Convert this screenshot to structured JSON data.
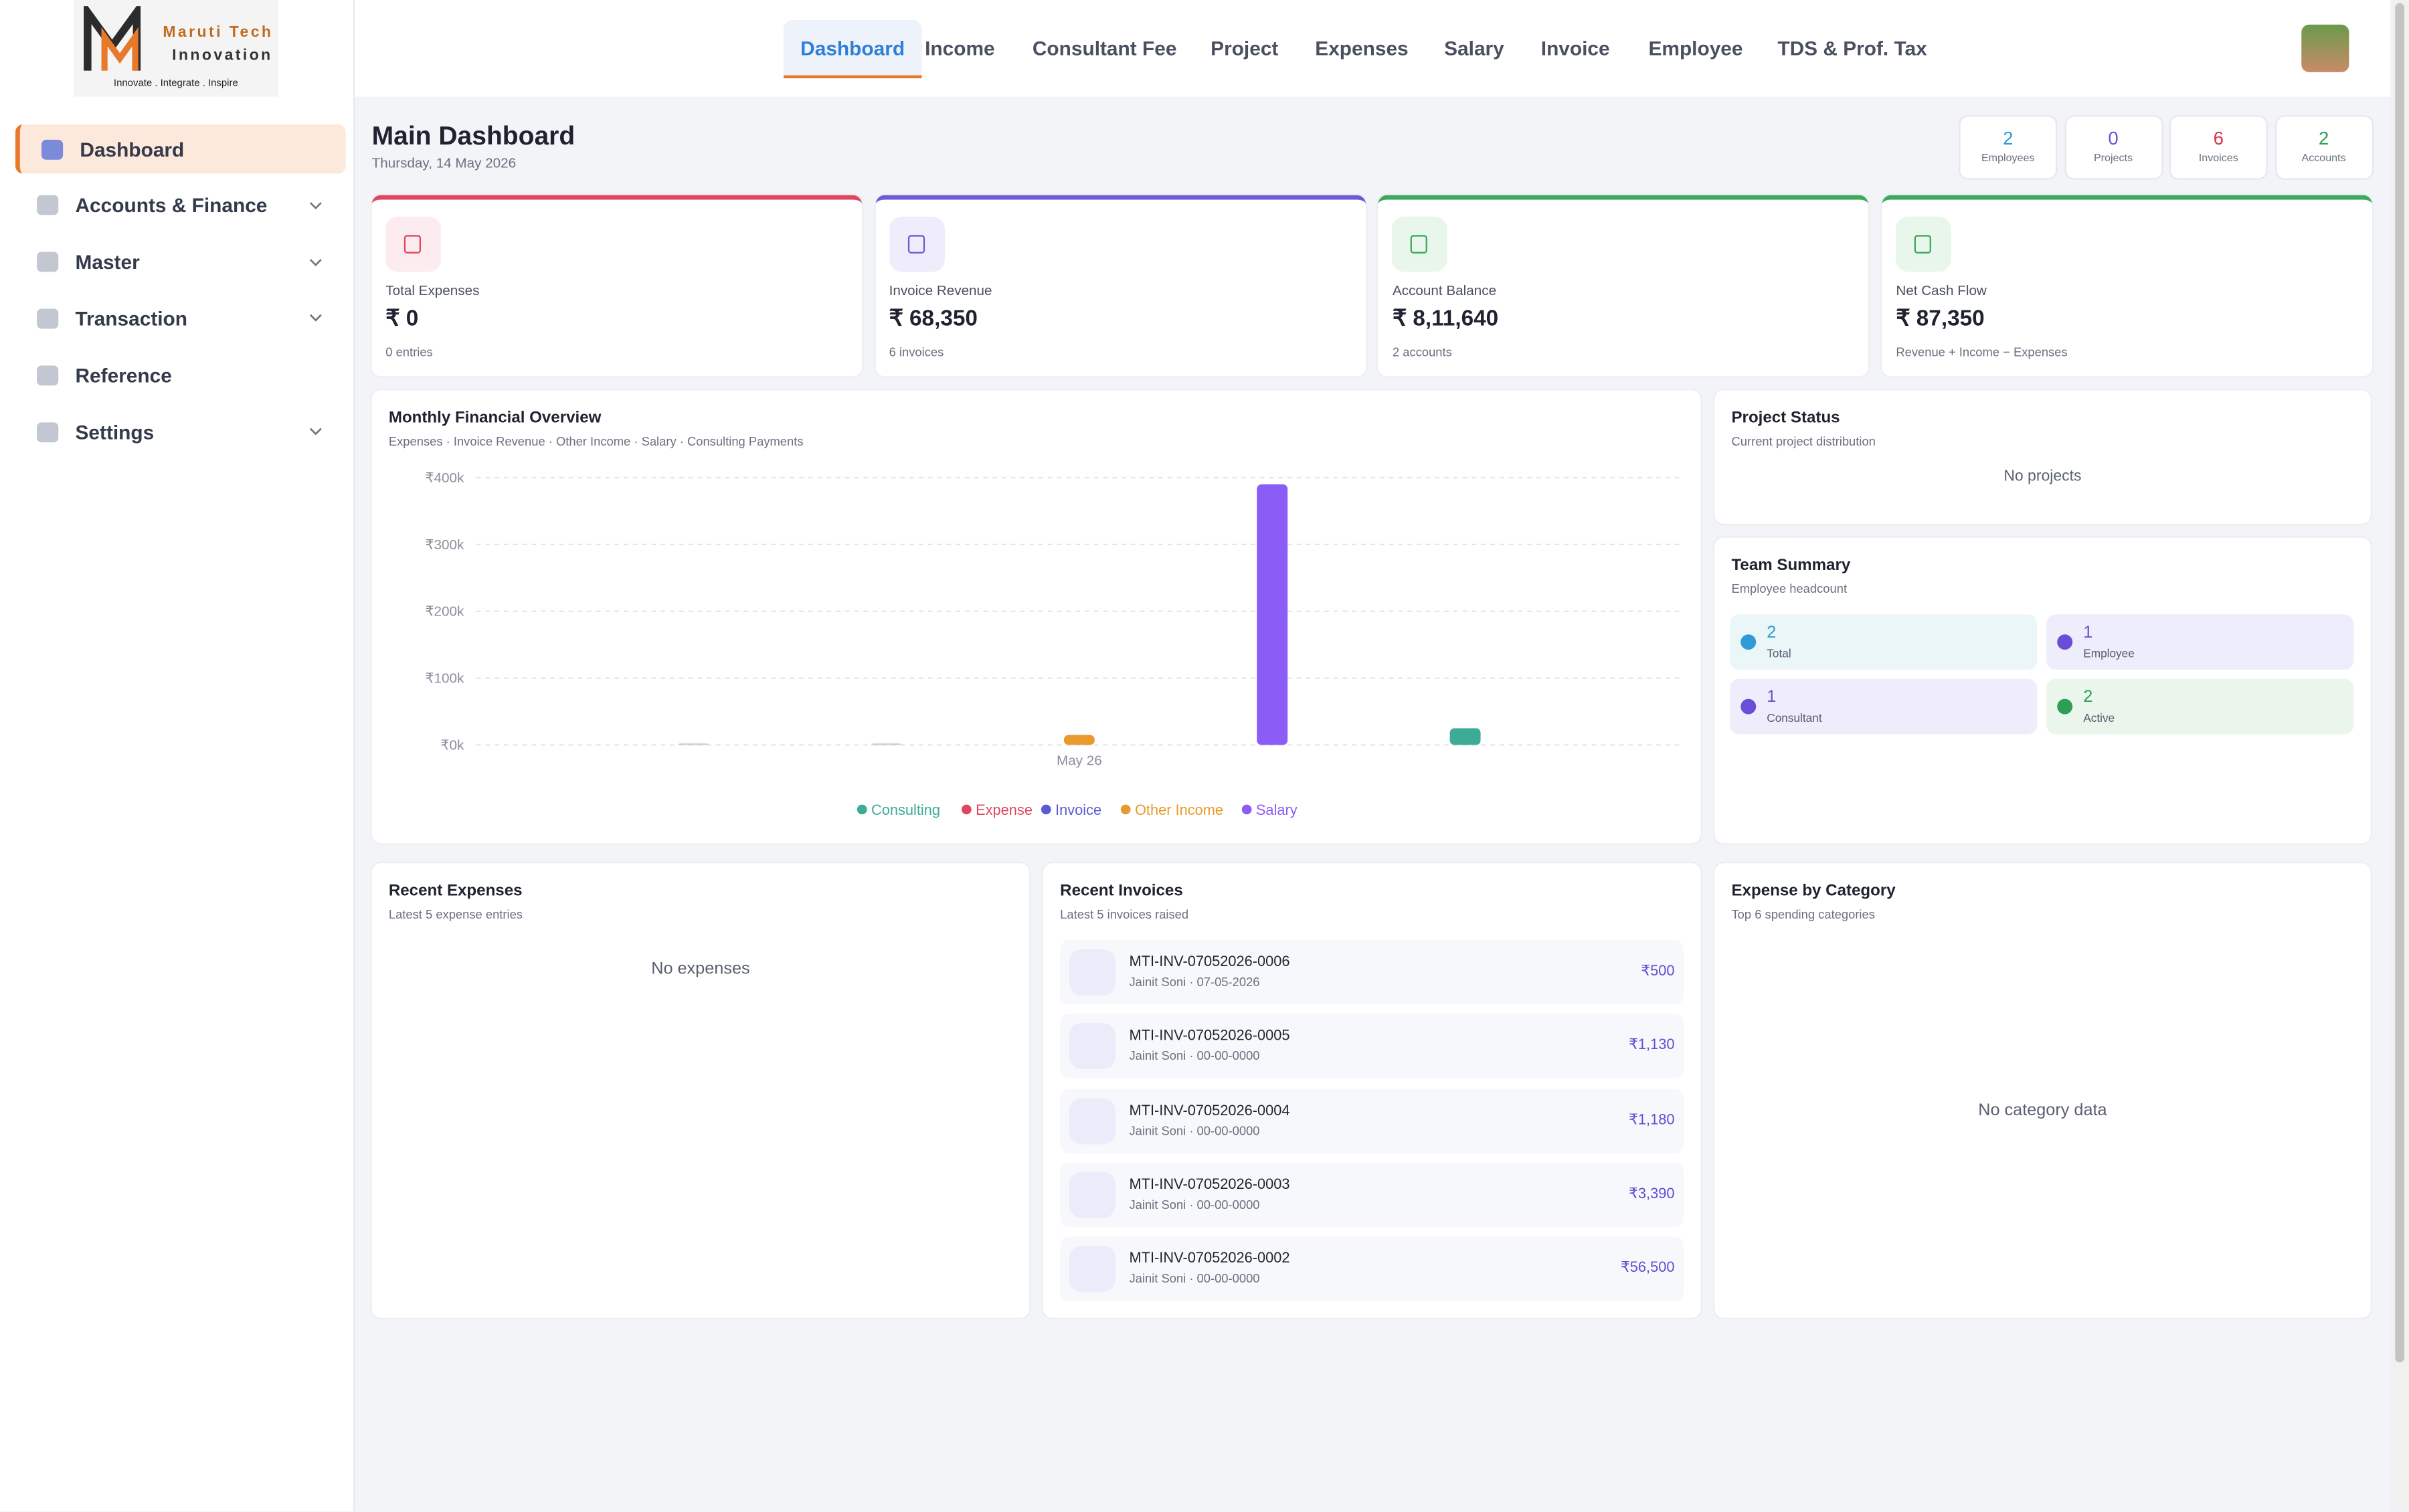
{
  "sidebar": {
    "logo": {
      "line1": "Maruti Tech",
      "line2": "Innovation",
      "tagline": "Innovate . Integrate . Inspire"
    },
    "items": [
      "Dashboard",
      "Accounts & Finance",
      "Master",
      "Transaction",
      "Reference",
      "Settings"
    ]
  },
  "nav": {
    "items": [
      "Dashboard",
      "Income",
      "Consultant Fee",
      "Project",
      "Expenses",
      "Salary",
      "Invoice",
      "Employee",
      "TDS & Prof. Tax"
    ]
  },
  "header": {
    "title": "Main Dashboard",
    "date": "Thursday, 14 May 2026"
  },
  "stats": [
    {
      "value": 2,
      "label": "Employees"
    },
    {
      "value": 0,
      "label": "Projects"
    },
    {
      "value": 6,
      "label": "Invoices"
    },
    {
      "value": 2,
      "label": "Accounts"
    }
  ],
  "kpis": [
    {
      "label": "Total Expenses",
      "value": "₹ 0",
      "note": "0 entries"
    },
    {
      "label": "Invoice Revenue",
      "value": "₹ 68,350",
      "note": "6 invoices"
    },
    {
      "label": "Account Balance",
      "value": "₹ 8,11,640",
      "note": "2 accounts"
    },
    {
      "label": "Net Cash Flow",
      "value": "₹ 87,350",
      "note": "Revenue + Income − Expenses"
    }
  ],
  "chart_data": {
    "type": "bar",
    "title": "Monthly Financial Overview",
    "subtitle": "Expenses · Invoice Revenue · Other Income · Salary · Consulting Payments",
    "categories": [
      "May 26"
    ],
    "series": [
      {
        "name": "Invoice",
        "color": "#5b5bd6",
        "values": [
          0
        ]
      },
      {
        "name": "Expense",
        "color": "#e0475f",
        "values": [
          0
        ]
      },
      {
        "name": "Other Income",
        "color": "#e89a2c",
        "values": [
          15000
        ]
      },
      {
        "name": "Salary",
        "color": "#8b5cf6",
        "values": [
          390000
        ]
      },
      {
        "name": "Consulting",
        "color": "#3dab97",
        "values": [
          25000
        ]
      }
    ],
    "ylim": [
      0,
      400000
    ],
    "yticks": [
      {
        "value": 0,
        "label": "₹0k"
      },
      {
        "value": 100000,
        "label": "₹100k"
      },
      {
        "value": 200000,
        "label": "₹200k"
      },
      {
        "value": 300000,
        "label": "₹300k"
      },
      {
        "value": 400000,
        "label": "₹400k"
      }
    ],
    "grid": true,
    "legend": "bottom"
  },
  "project_status": {
    "title": "Project Status",
    "subtitle": "Current project distribution",
    "empty": "No projects"
  },
  "team_summary": {
    "title": "Team Summary",
    "subtitle": "Employee headcount",
    "items": [
      {
        "value": 2,
        "label": "Total"
      },
      {
        "value": 1,
        "label": "Employee"
      },
      {
        "value": 1,
        "label": "Consultant"
      },
      {
        "value": 2,
        "label": "Active"
      }
    ]
  },
  "recent_expenses": {
    "title": "Recent Expenses",
    "subtitle": "Latest 5 expense entries",
    "empty": "No expenses"
  },
  "recent_invoices": {
    "title": "Recent Invoices",
    "subtitle": "Latest 5 invoices raised",
    "items": [
      {
        "number": "MTI-INV-07052026-0006",
        "meta": "Jainit Soni · 07-05-2026",
        "amount": "₹500"
      },
      {
        "number": "MTI-INV-07052026-0005",
        "meta": "Jainit Soni · 00-00-0000",
        "amount": "₹1,130"
      },
      {
        "number": "MTI-INV-07052026-0004",
        "meta": "Jainit Soni · 00-00-0000",
        "amount": "₹1,180"
      },
      {
        "number": "MTI-INV-07052026-0003",
        "meta": "Jainit Soni · 00-00-0000",
        "amount": "₹3,390"
      },
      {
        "number": "MTI-INV-07052026-0002",
        "meta": "Jainit Soni · 00-00-0000",
        "amount": "₹56,500"
      }
    ]
  },
  "expense_by_category": {
    "title": "Expense by Category",
    "subtitle": "Top 6 spending categories",
    "empty": "No category data"
  }
}
